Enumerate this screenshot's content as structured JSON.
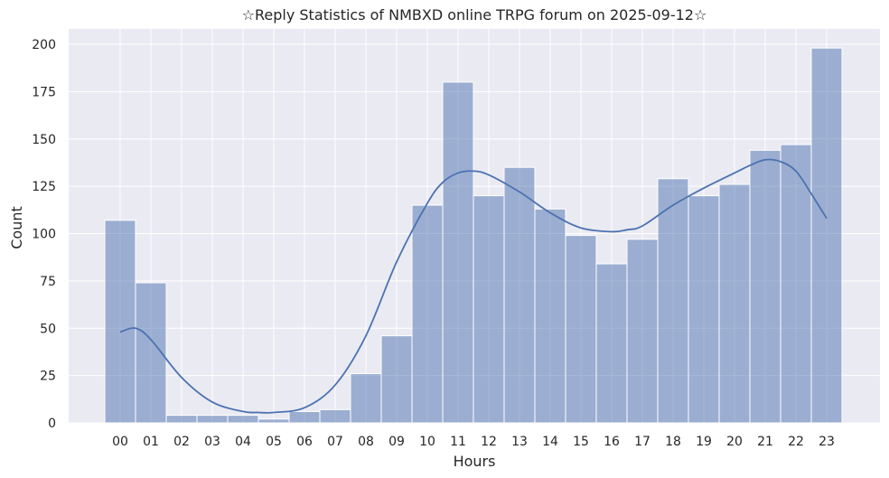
{
  "chart_data": {
    "type": "bar",
    "title": "☆Reply Statistics of NMBXD online TRPG forum on 2025-09-12☆",
    "xlabel": "Hours",
    "ylabel": "Count",
    "categories": [
      "00",
      "01",
      "02",
      "03",
      "04",
      "05",
      "06",
      "07",
      "08",
      "09",
      "10",
      "11",
      "12",
      "13",
      "14",
      "15",
      "16",
      "17",
      "18",
      "19",
      "20",
      "21",
      "22",
      "23"
    ],
    "values": [
      107,
      74,
      4,
      4,
      4,
      2,
      6,
      7,
      26,
      46,
      115,
      180,
      120,
      135,
      113,
      99,
      84,
      97,
      129,
      120,
      126,
      144,
      147,
      198
    ],
    "kde": {
      "x": [
        0,
        0.5,
        1,
        2,
        3,
        4,
        4.5,
        5,
        6,
        7,
        8,
        9,
        10,
        10.5,
        11,
        11.5,
        12,
        13,
        14,
        15,
        16,
        16.5,
        17,
        18,
        19,
        20,
        20.5,
        21,
        21.5,
        22,
        22.5,
        23
      ],
      "y": [
        48,
        50,
        44,
        24,
        11,
        6,
        5.5,
        5.5,
        8,
        20,
        46,
        85,
        116,
        127,
        132,
        133,
        131,
        122,
        111,
        103,
        101,
        102,
        104,
        115,
        124,
        132,
        136,
        139,
        138,
        133,
        121,
        108
      ]
    },
    "ylim": [
      0,
      205
    ],
    "yticks": [
      0,
      25,
      50,
      75,
      100,
      125,
      150,
      175,
      200
    ],
    "grid": true,
    "colors": {
      "background": "#eaeaf2",
      "bar_fill": "#4c72b0",
      "bar_opacity": 0.5,
      "line": "#4c72b0",
      "grid": "#ffffff"
    }
  }
}
